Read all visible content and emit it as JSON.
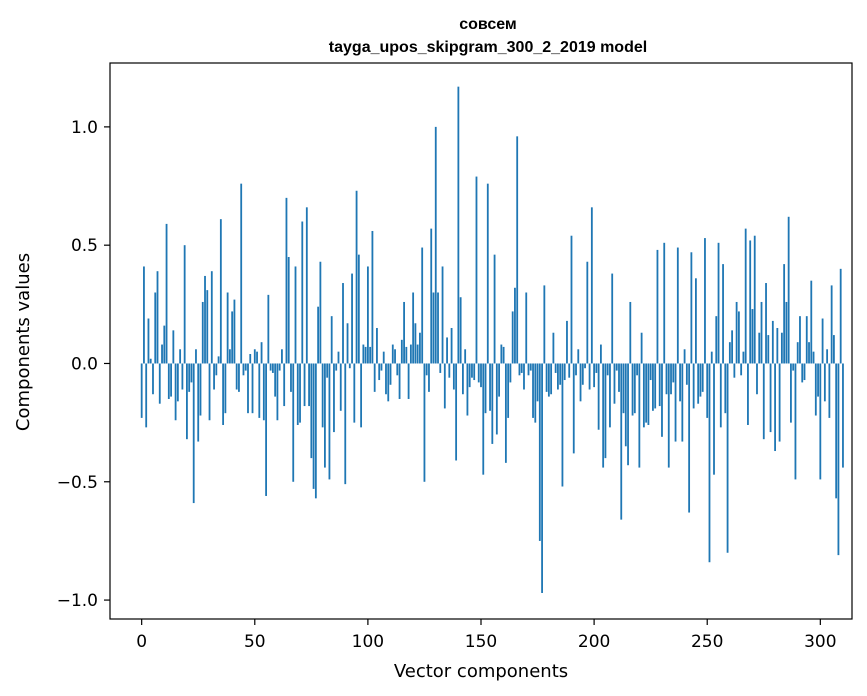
{
  "chart_data": {
    "type": "bar",
    "title_line1": "совсем",
    "title_line2": "tayga_upos_skipgram_300_2_2019 model",
    "xlabel": "Vector components",
    "ylabel": "Components values",
    "xlim": [
      -14,
      314
    ],
    "ylim": [
      -1.08,
      1.27
    ],
    "xticks": [
      0,
      50,
      100,
      150,
      200,
      250,
      300
    ],
    "xtick_labels": [
      "0",
      "50",
      "100",
      "150",
      "200",
      "250",
      "300"
    ],
    "yticks": [
      -1.0,
      -0.5,
      0.0,
      0.5,
      1.0
    ],
    "ytick_labels": [
      "−1.0",
      "−0.5",
      "0.0",
      "0.5",
      "1.0"
    ],
    "bar_color": "#1f77b4",
    "values": [
      -0.23,
      0.41,
      -0.27,
      0.19,
      0.02,
      -0.13,
      0.3,
      0.39,
      -0.17,
      0.08,
      0.16,
      0.59,
      -0.15,
      -0.14,
      0.14,
      -0.24,
      -0.16,
      0.06,
      -0.11,
      0.5,
      -0.32,
      -0.12,
      -0.08,
      -0.59,
      0.06,
      -0.33,
      -0.22,
      0.26,
      0.37,
      0.31,
      -0.24,
      0.39,
      -0.11,
      -0.05,
      0.03,
      0.61,
      -0.26,
      -0.21,
      0.3,
      0.06,
      0.22,
      0.27,
      -0.11,
      -0.12,
      0.76,
      -0.05,
      -0.03,
      -0.21,
      0.04,
      -0.21,
      0.06,
      0.05,
      -0.23,
      0.09,
      -0.24,
      -0.56,
      0.29,
      -0.03,
      -0.04,
      -0.14,
      -0.24,
      -0.03,
      0.06,
      -0.18,
      0.7,
      0.45,
      -0.12,
      -0.5,
      0.41,
      -0.26,
      -0.25,
      0.6,
      -0.18,
      0.66,
      -0.18,
      -0.4,
      -0.53,
      -0.57,
      0.24,
      0.43,
      -0.27,
      -0.44,
      -0.06,
      -0.49,
      0.2,
      -0.29,
      -0.03,
      0.05,
      -0.2,
      0.34,
      -0.51,
      0.17,
      -0.02,
      0.38,
      -0.25,
      0.73,
      0.46,
      -0.27,
      0.08,
      0.07,
      0.41,
      0.07,
      0.56,
      -0.12,
      0.15,
      -0.07,
      -0.03,
      0.05,
      -0.13,
      -0.16,
      -0.09,
      0.08,
      0.06,
      -0.05,
      -0.15,
      0.1,
      0.26,
      0.07,
      -0.15,
      0.08,
      0.3,
      0.17,
      0.08,
      0.13,
      0.49,
      -0.5,
      -0.05,
      -0.12,
      0.57,
      0.3,
      1.0,
      0.3,
      -0.04,
      0.41,
      -0.19,
      0.11,
      -0.06,
      0.15,
      -0.11,
      -0.41,
      1.17,
      0.28,
      -0.13,
      0.06,
      -0.22,
      -0.1,
      -0.06,
      -0.07,
      0.79,
      -0.08,
      -0.1,
      -0.47,
      -0.21,
      0.76,
      -0.2,
      -0.34,
      0.46,
      -0.3,
      -0.14,
      0.08,
      0.07,
      -0.42,
      -0.23,
      -0.08,
      0.22,
      0.32,
      0.96,
      -0.05,
      -0.04,
      -0.11,
      0.3,
      -0.05,
      -0.03,
      -0.23,
      -0.25,
      -0.16,
      -0.75,
      -0.97,
      0.33,
      -0.12,
      -0.14,
      -0.13,
      0.13,
      -0.04,
      -0.11,
      -0.09,
      -0.52,
      -0.07,
      0.18,
      -0.06,
      0.54,
      -0.38,
      -0.05,
      0.06,
      -0.16,
      -0.09,
      -0.02,
      0.43,
      -0.11,
      0.66,
      -0.1,
      -0.04,
      -0.28,
      0.08,
      -0.44,
      -0.4,
      -0.05,
      -0.27,
      0.38,
      -0.17,
      -0.03,
      -0.12,
      -0.66,
      -0.21,
      -0.35,
      -0.43,
      0.26,
      -0.22,
      -0.21,
      -0.05,
      -0.44,
      0.13,
      -0.27,
      -0.25,
      -0.26,
      -0.07,
      -0.2,
      -0.19,
      0.48,
      -0.18,
      -0.31,
      0.51,
      -0.13,
      -0.44,
      -0.13,
      -0.08,
      -0.33,
      0.49,
      -0.16,
      -0.33,
      0.06,
      -0.09,
      -0.63,
      0.47,
      -0.19,
      0.36,
      -0.17,
      -0.14,
      -0.12,
      0.53,
      -0.23,
      -0.84,
      0.05,
      -0.47,
      0.2,
      0.51,
      -0.27,
      0.42,
      -0.21,
      -0.8,
      0.09,
      0.14,
      -0.06,
      0.26,
      0.22,
      -0.05,
      0.05,
      0.57,
      -0.26,
      0.52,
      0.23,
      0.54,
      -0.13,
      0.13,
      0.26,
      -0.32,
      0.34,
      0.12,
      -0.29,
      0.18,
      -0.37,
      0.15,
      -0.33,
      0.13,
      0.42,
      0.26,
      0.62,
      -0.25,
      -0.03,
      -0.49,
      0.09,
      0.2,
      -0.08,
      -0.07,
      0.2,
      0.09,
      0.35,
      0.05,
      -0.22,
      -0.14,
      -0.49,
      0.19,
      -0.16,
      0.06,
      -0.23,
      0.33,
      0.12,
      -0.57,
      -0.81,
      0.4,
      -0.44
    ]
  }
}
